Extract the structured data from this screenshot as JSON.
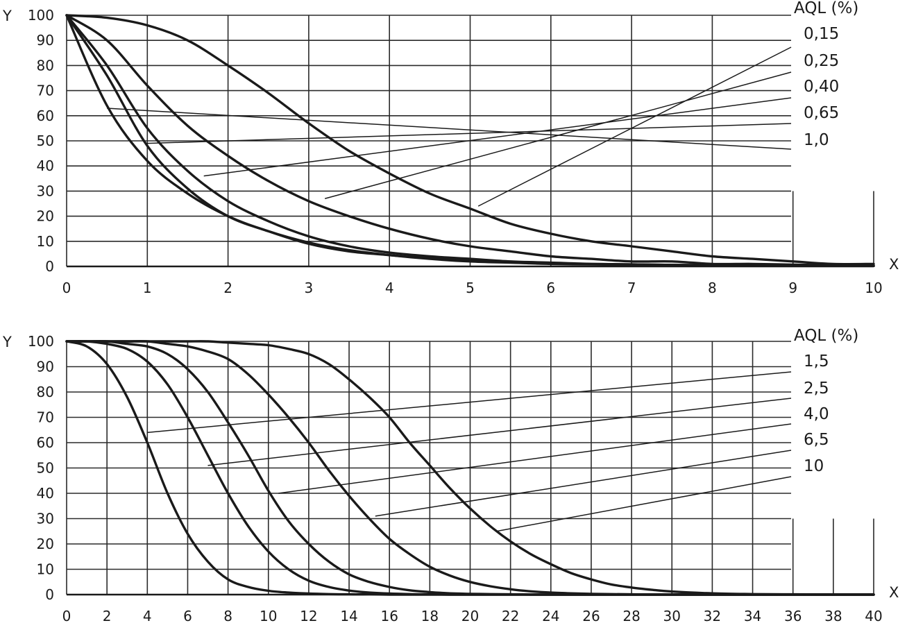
{
  "chart_data": [
    {
      "type": "line",
      "xlabel": "X",
      "ylabel": "Y",
      "xlim": [
        0,
        10
      ],
      "ylim": [
        0,
        100
      ],
      "x_ticks": [
        "0",
        "1",
        "2",
        "3",
        "4",
        "5",
        "6",
        "7",
        "8",
        "9",
        "10"
      ],
      "y_ticks": [
        "0",
        "10",
        "20",
        "30",
        "40",
        "50",
        "60",
        "70",
        "80",
        "90",
        "100"
      ],
      "grid": true,
      "legend_title": "AQL (%)",
      "x": [
        0,
        0.5,
        1,
        1.5,
        2,
        2.5,
        3,
        3.5,
        4,
        4.5,
        5,
        5.5,
        6,
        6.5,
        7,
        7.5,
        8,
        8.5,
        9,
        9.5,
        10
      ],
      "series": [
        {
          "name": "0,15",
          "label_anchor": [
            5.1,
            24
          ],
          "values": [
            100,
            99,
            96,
            90,
            80,
            69,
            57,
            46,
            37,
            29,
            23,
            17,
            13,
            10,
            8,
            6,
            4,
            3,
            2,
            1,
            1
          ]
        },
        {
          "name": "0,25",
          "label_anchor": [
            3.2,
            27
          ],
          "values": [
            100,
            90,
            72,
            56,
            44,
            34,
            26,
            20,
            15,
            11,
            8,
            6,
            4,
            3,
            2,
            2,
            1,
            1,
            0.7,
            0.5,
            0.4
          ]
        },
        {
          "name": "0,40",
          "label_anchor": [
            1.7,
            36
          ],
          "values": [
            100,
            80,
            55,
            38,
            26,
            18,
            12,
            8,
            5.5,
            4,
            3,
            2,
            1.5,
            1,
            0.8,
            0.6,
            0.5,
            0.4,
            0.3,
            0.3,
            0.2
          ]
        },
        {
          "name": "0,65",
          "label_anchor": [
            1.0,
            49
          ],
          "values": [
            100,
            76,
            48,
            31,
            20,
            14,
            9,
            6,
            4.5,
            3.2,
            2.3,
            1.7,
            1.3,
            1,
            0.8,
            0.6,
            0.5,
            0.4,
            0.3,
            0.3,
            0.2
          ]
        },
        {
          "name": "1,0",
          "label_anchor": [
            0.5,
            63
          ],
          "values": [
            100,
            64,
            42,
            29,
            20,
            14,
            9.5,
            6.5,
            4.5,
            3,
            2,
            1.5,
            1,
            0.8,
            0.6,
            0.5,
            0.4,
            0.3,
            0.3,
            0.2,
            0.2
          ]
        }
      ]
    },
    {
      "type": "line",
      "xlabel": "X",
      "ylabel": "Y",
      "xlim": [
        0,
        40
      ],
      "ylim": [
        0,
        100
      ],
      "x_ticks": [
        "0",
        "2",
        "4",
        "6",
        "8",
        "10",
        "12",
        "14",
        "16",
        "18",
        "20",
        "22",
        "24",
        "26",
        "28",
        "30",
        "32",
        "34",
        "36",
        "38",
        "40"
      ],
      "y_ticks": [
        "0",
        "10",
        "20",
        "30",
        "40",
        "50",
        "60",
        "70",
        "80",
        "90",
        "100"
      ],
      "grid": true,
      "legend_title": "AQL (%)",
      "x": [
        0,
        1,
        2,
        3,
        4,
        5,
        6,
        7,
        8,
        9,
        10,
        11,
        12,
        13,
        14,
        15,
        16,
        17,
        18,
        19,
        20,
        21,
        22,
        23,
        24,
        25,
        26,
        27,
        28,
        29,
        30,
        32,
        34,
        36,
        38,
        40
      ],
      "series": [
        {
          "name": "1,5",
          "label_anchor": [
            4,
            64
          ],
          "values": [
            100,
            98,
            91,
            78,
            60,
            40,
            24,
            13,
            6,
            3,
            1.5,
            0.8,
            0.4,
            0.2,
            0.1,
            0.1,
            0,
            0,
            0,
            0,
            0,
            0,
            0,
            0,
            0,
            0,
            0,
            0,
            0,
            0,
            0,
            0,
            0,
            0,
            0,
            0
          ]
        },
        {
          "name": "2,5",
          "label_anchor": [
            7,
            51
          ],
          "values": [
            100,
            100,
            99,
            97,
            92,
            83,
            70,
            55,
            40,
            27,
            17,
            10,
            5.5,
            3,
            1.6,
            0.8,
            0.4,
            0.2,
            0.1,
            0,
            0,
            0,
            0,
            0,
            0,
            0,
            0,
            0,
            0,
            0,
            0,
            0,
            0,
            0,
            0,
            0
          ]
        },
        {
          "name": "4,0",
          "label_anchor": [
            10.5,
            40
          ],
          "values": [
            100,
            100,
            100,
            99,
            98,
            95,
            89,
            80,
            68,
            55,
            41,
            29,
            20,
            13,
            8,
            5,
            3,
            1.7,
            1,
            0.5,
            0.3,
            0.2,
            0.1,
            0,
            0,
            0,
            0,
            0,
            0,
            0,
            0,
            0,
            0,
            0,
            0,
            0
          ]
        },
        {
          "name": "6,5",
          "label_anchor": [
            15.3,
            31
          ],
          "values": [
            100,
            100,
            100,
            100,
            100,
            99,
            98,
            96,
            93,
            87,
            79,
            70,
            60,
            49,
            39,
            30,
            22,
            16,
            11,
            7.5,
            5,
            3.3,
            2.1,
            1.3,
            0.8,
            0.5,
            0.3,
            0.2,
            0.1,
            0,
            0,
            0,
            0,
            0,
            0,
            0
          ]
        },
        {
          "name": "10",
          "label_anchor": [
            21.3,
            25
          ],
          "values": [
            100,
            100,
            100,
            100,
            100,
            100,
            100,
            100,
            99.5,
            99,
            98.5,
            97,
            95,
            91,
            85,
            78,
            70,
            60,
            51,
            42,
            34,
            27,
            21,
            16,
            12,
            8.5,
            6,
            4,
            2.8,
            1.9,
            1.2,
            0.5,
            0.2,
            0.1,
            0,
            0
          ]
        }
      ]
    }
  ]
}
